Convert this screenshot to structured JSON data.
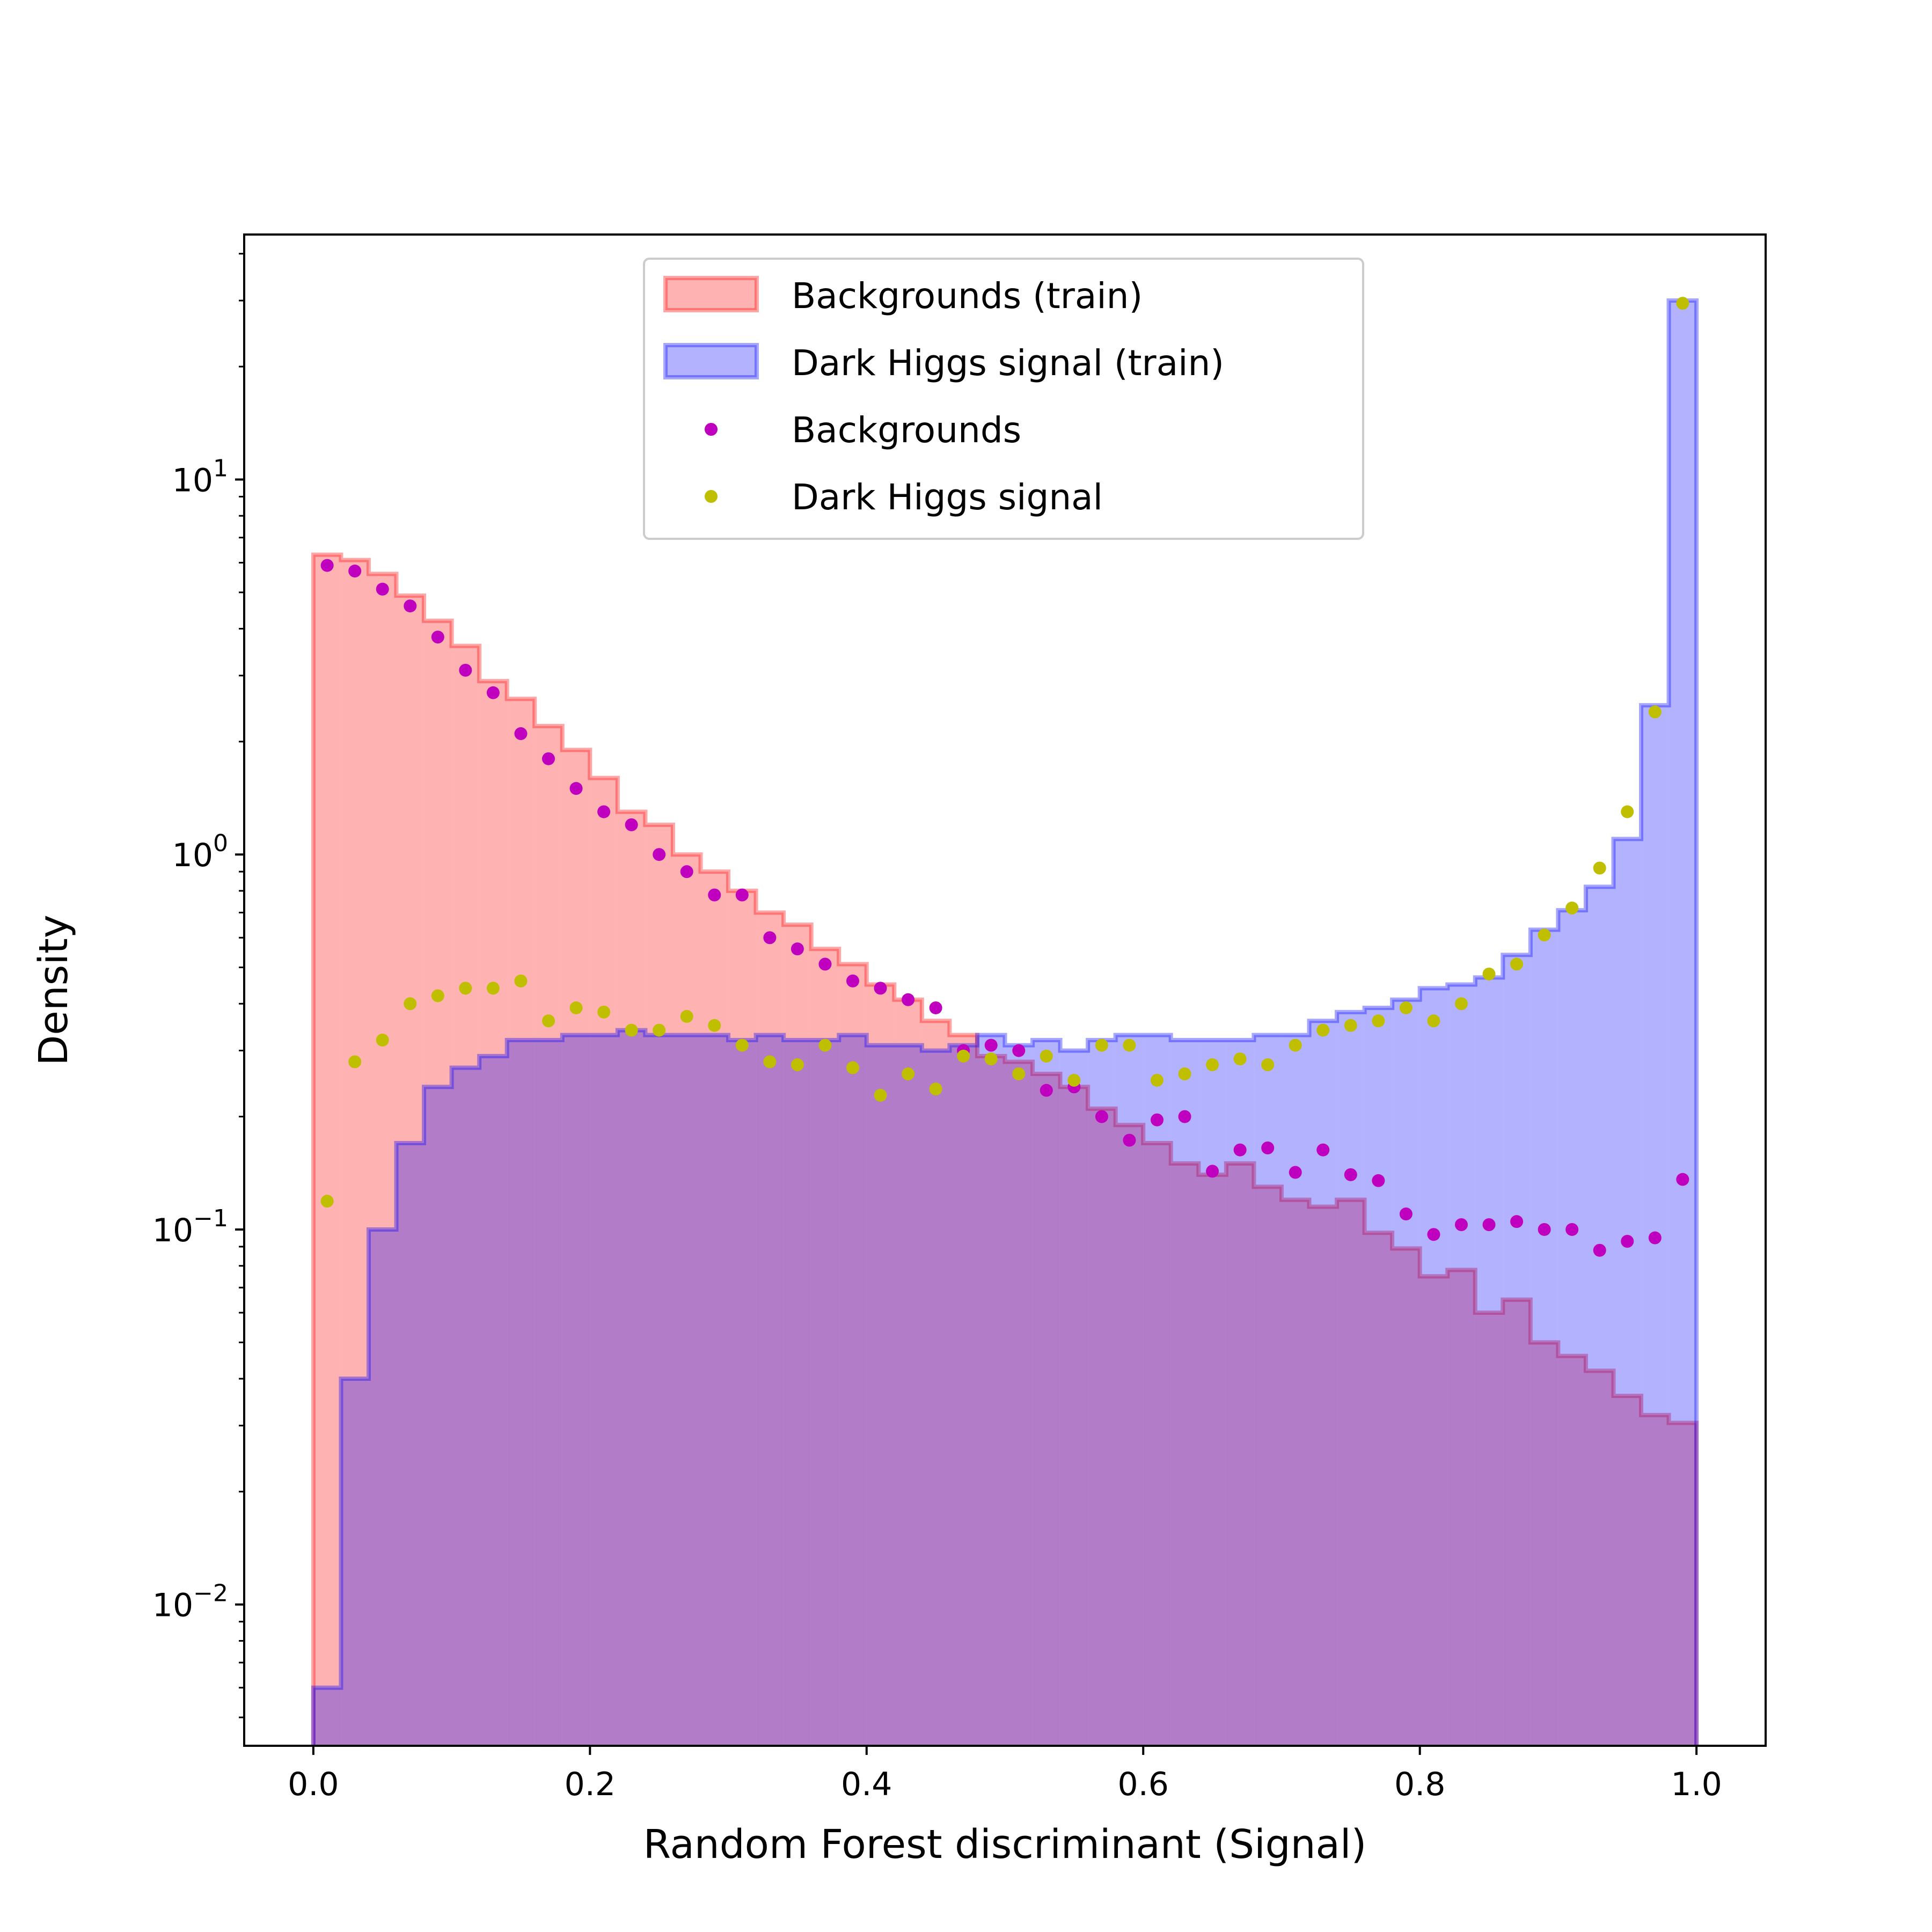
{
  "colors": {
    "bkg_fill": "#ff0000",
    "sig_fill": "#0000ff",
    "bkg_points": "#bf00bf",
    "sig_points": "#bfbf00"
  },
  "chart_data": {
    "type": "histogram",
    "xlabel": "Random Forest discriminant (Signal)",
    "ylabel": "Density",
    "xlim": [
      -0.05,
      1.05
    ],
    "ylim": [
      0.0042,
      45
    ],
    "yscale": "log",
    "x_ticks": [
      "0.0",
      "0.2",
      "0.4",
      "0.6",
      "0.8",
      "1.0"
    ],
    "y_ticks": [
      {
        "value": 0.01,
        "base": "10",
        "exp": "−2"
      },
      {
        "value": 0.1,
        "base": "10",
        "exp": "−1"
      },
      {
        "value": 1,
        "base": "10",
        "exp": "0"
      },
      {
        "value": 10,
        "base": "10",
        "exp": "1"
      }
    ],
    "legend": {
      "placement": "upper center",
      "entries": [
        "Backgrounds (train)",
        "Dark Higgs signal (train)",
        "Backgrounds",
        "Dark Higgs signal"
      ]
    },
    "bin_edges": [
      0.0,
      0.02,
      0.04,
      0.06,
      0.08,
      0.1,
      0.12,
      0.14,
      0.16,
      0.18,
      0.2,
      0.22,
      0.24,
      0.26,
      0.28,
      0.3,
      0.32,
      0.34,
      0.36,
      0.38,
      0.4,
      0.42,
      0.44,
      0.46,
      0.48,
      0.5,
      0.52,
      0.54,
      0.56,
      0.58,
      0.6,
      0.62,
      0.64,
      0.66,
      0.68,
      0.7,
      0.72,
      0.74,
      0.76,
      0.78,
      0.8,
      0.82,
      0.84,
      0.86,
      0.88,
      0.9,
      0.92,
      0.94,
      0.96,
      0.98,
      1.0
    ],
    "series": [
      {
        "name": "Backgrounds (train)",
        "kind": "step-filled",
        "values": [
          6.3,
          6.1,
          5.6,
          4.9,
          4.2,
          3.6,
          2.9,
          2.6,
          2.2,
          1.9,
          1.6,
          1.3,
          1.2,
          1.0,
          0.9,
          0.8,
          0.7,
          0.65,
          0.56,
          0.51,
          0.45,
          0.41,
          0.36,
          0.33,
          0.29,
          0.28,
          0.26,
          0.24,
          0.21,
          0.19,
          0.17,
          0.15,
          0.14,
          0.15,
          0.13,
          0.12,
          0.115,
          0.12,
          0.098,
          0.089,
          0.075,
          0.078,
          0.06,
          0.065,
          0.05,
          0.046,
          0.042,
          0.036,
          0.032,
          0.0305
        ]
      },
      {
        "name": "Dark Higgs signal (train)",
        "kind": "step-filled",
        "values": [
          0.006,
          0.04,
          0.1,
          0.17,
          0.24,
          0.27,
          0.29,
          0.32,
          0.32,
          0.33,
          0.33,
          0.34,
          0.33,
          0.33,
          0.33,
          0.32,
          0.33,
          0.32,
          0.32,
          0.33,
          0.31,
          0.31,
          0.3,
          0.31,
          0.33,
          0.31,
          0.32,
          0.3,
          0.32,
          0.33,
          0.33,
          0.32,
          0.32,
          0.32,
          0.33,
          0.33,
          0.36,
          0.38,
          0.39,
          0.41,
          0.44,
          0.45,
          0.47,
          0.54,
          0.63,
          0.71,
          0.82,
          1.1,
          2.5,
          30.0
        ]
      },
      {
        "name": "Backgrounds",
        "kind": "points",
        "x": [
          0.01,
          0.03,
          0.05,
          0.07,
          0.09,
          0.11,
          0.13,
          0.15,
          0.17,
          0.19,
          0.21,
          0.23,
          0.25,
          0.27,
          0.29,
          0.31,
          0.33,
          0.35,
          0.37,
          0.39,
          0.41,
          0.43,
          0.45,
          0.47,
          0.49,
          0.51,
          0.53,
          0.55,
          0.57,
          0.59,
          0.61,
          0.63,
          0.65,
          0.67,
          0.69,
          0.71,
          0.73,
          0.75,
          0.77,
          0.79,
          0.81,
          0.83,
          0.85,
          0.87,
          0.89,
          0.91,
          0.93,
          0.95,
          0.97,
          0.99
        ],
        "y": [
          5.9,
          5.7,
          5.1,
          4.6,
          3.8,
          3.1,
          2.7,
          2.1,
          1.8,
          1.5,
          1.3,
          1.2,
          1.0,
          0.9,
          0.78,
          0.78,
          0.6,
          0.56,
          0.51,
          0.46,
          0.44,
          0.41,
          0.39,
          0.3,
          0.31,
          0.3,
          0.235,
          0.24,
          0.2,
          0.173,
          0.196,
          0.2,
          0.143,
          0.163,
          0.165,
          0.142,
          0.163,
          0.14,
          0.135,
          0.11,
          0.097,
          0.103,
          0.103,
          0.105,
          0.1,
          0.1,
          0.088,
          0.093,
          0.095,
          0.136
        ]
      },
      {
        "name": "Dark Higgs signal",
        "kind": "points",
        "x": [
          0.01,
          0.03,
          0.05,
          0.07,
          0.09,
          0.11,
          0.13,
          0.15,
          0.17,
          0.19,
          0.21,
          0.23,
          0.25,
          0.27,
          0.29,
          0.31,
          0.33,
          0.35,
          0.37,
          0.39,
          0.41,
          0.43,
          0.45,
          0.47,
          0.49,
          0.51,
          0.53,
          0.55,
          0.57,
          0.59,
          0.61,
          0.63,
          0.65,
          0.67,
          0.69,
          0.71,
          0.73,
          0.75,
          0.77,
          0.79,
          0.81,
          0.83,
          0.85,
          0.87,
          0.89,
          0.91,
          0.93,
          0.95,
          0.97,
          0.99
        ],
        "y": [
          0.119,
          0.28,
          0.32,
          0.4,
          0.42,
          0.44,
          0.44,
          0.46,
          0.36,
          0.39,
          0.38,
          0.34,
          0.34,
          0.37,
          0.35,
          0.31,
          0.28,
          0.275,
          0.31,
          0.27,
          0.228,
          0.26,
          0.237,
          0.29,
          0.285,
          0.26,
          0.29,
          0.25,
          0.31,
          0.31,
          0.25,
          0.26,
          0.275,
          0.285,
          0.275,
          0.31,
          0.34,
          0.35,
          0.36,
          0.39,
          0.36,
          0.4,
          0.48,
          0.51,
          0.61,
          0.72,
          0.92,
          1.3,
          2.4,
          29.5
        ]
      }
    ]
  }
}
